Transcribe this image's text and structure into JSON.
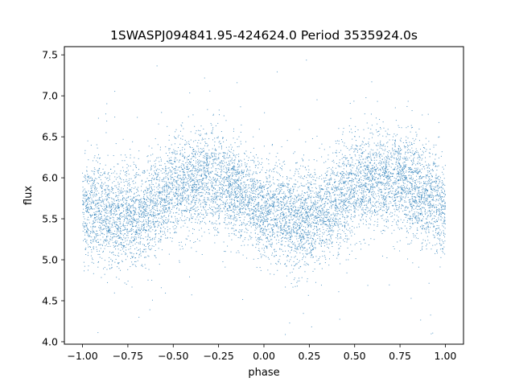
{
  "chart_data": {
    "type": "scatter",
    "title": "1SWASPJ094841.95-424624.0 Period 3535924.0s",
    "xlabel": "phase",
    "ylabel": "flux",
    "xlim": [
      -1.1,
      1.1
    ],
    "ylim": [
      3.97,
      7.6
    ],
    "x_ticks": [
      -1.0,
      -0.75,
      -0.5,
      -0.25,
      0.0,
      0.25,
      0.5,
      0.75,
      1.0
    ],
    "x_tick_labels": [
      "−1.00",
      "−0.75",
      "−0.50",
      "−0.25",
      "0.00",
      "0.25",
      "0.50",
      "0.75",
      "1.00"
    ],
    "y_ticks": [
      4.0,
      4.5,
      5.0,
      5.5,
      6.0,
      6.5,
      7.0,
      7.5
    ],
    "y_tick_labels": [
      "4.0",
      "4.5",
      "5.0",
      "5.5",
      "6.0",
      "6.5",
      "7.0",
      "7.5"
    ],
    "grid": false,
    "marker_color": "#1f77b4",
    "series": [
      {
        "phase_range": [
          -1.0,
          1.0
        ],
        "trend": {
          "phase": [
            -1.0,
            -0.9,
            -0.8,
            -0.7,
            -0.6,
            -0.5,
            -0.4,
            -0.3,
            -0.2,
            -0.1,
            0.0,
            0.1,
            0.2,
            0.3,
            0.4,
            0.5,
            0.6,
            0.7,
            0.8,
            0.9,
            1.0
          ],
          "flux": [
            5.62,
            5.58,
            5.5,
            5.52,
            5.68,
            5.85,
            5.97,
            5.98,
            5.9,
            5.78,
            5.62,
            5.55,
            5.48,
            5.55,
            5.72,
            5.88,
            5.98,
            5.97,
            5.9,
            5.78,
            5.62
          ]
        },
        "spread_sd": 0.3
      }
    ]
  }
}
